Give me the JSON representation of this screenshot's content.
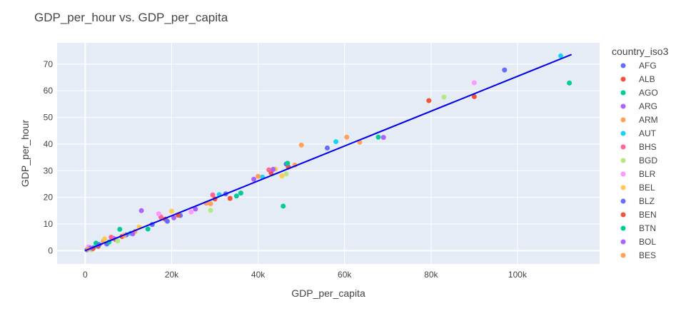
{
  "chart_data": {
    "type": "scatter",
    "title": "GDP_per_hour vs. GDP_per_capita",
    "xlabel": "GDP_per_capita",
    "ylabel": "GDP_per_hour",
    "xlim": [
      -6500,
      119000
    ],
    "ylim": [
      -5,
      78
    ],
    "x_ticks": [
      0,
      20000,
      40000,
      60000,
      80000,
      100000
    ],
    "x_tick_labels": [
      "0",
      "20k",
      "40k",
      "60k",
      "80k",
      "100k"
    ],
    "y_ticks": [
      0,
      10,
      20,
      30,
      40,
      50,
      60,
      70
    ],
    "y_tick_labels": [
      "0",
      "10",
      "20",
      "30",
      "40",
      "50",
      "60",
      "70"
    ],
    "grid": true,
    "legend_title": "country_iso3",
    "legend_placement": "right",
    "colors": {
      "plot_bg": "#E5ECF6",
      "grid": "#ffffff",
      "trendline": "#0000EE"
    },
    "series": [
      {
        "name": "AFG",
        "color": "#636EFA",
        "points": [
          [
            400,
            0.3
          ],
          [
            5000,
            2.5
          ],
          [
            15500,
            9.8
          ],
          [
            22000,
            13.2
          ],
          [
            56000,
            38.5
          ],
          [
            97000,
            67.8
          ]
        ]
      },
      {
        "name": "ALB",
        "color": "#EF553B",
        "points": [
          [
            3000,
            1.6
          ],
          [
            7000,
            4.2
          ],
          [
            18500,
            11.8
          ],
          [
            33500,
            19.6
          ],
          [
            43000,
            29.2
          ],
          [
            79500,
            56.3
          ],
          [
            90000,
            57.8
          ]
        ]
      },
      {
        "name": "AGO",
        "color": "#00CC96",
        "points": [
          [
            2500,
            2.8
          ],
          [
            8000,
            8.0
          ],
          [
            36000,
            21.6
          ],
          [
            45800,
            16.7
          ],
          [
            67800,
            42.6
          ],
          [
            112000,
            62.9
          ]
        ]
      },
      {
        "name": "ARG",
        "color": "#AB63FA",
        "points": [
          [
            6500,
            4.6
          ],
          [
            13000,
            15.0
          ],
          [
            20500,
            12.3
          ],
          [
            39000,
            26.8
          ],
          [
            69000,
            42.5
          ]
        ]
      },
      {
        "name": "ARM",
        "color": "#FFA15A",
        "points": [
          [
            4200,
            3.5
          ],
          [
            11500,
            7.2
          ],
          [
            29000,
            17.6
          ],
          [
            50000,
            39.6
          ],
          [
            60500,
            42.6
          ],
          [
            63500,
            40.7
          ]
        ]
      },
      {
        "name": "AUT",
        "color": "#19D3F3",
        "points": [
          [
            2000,
            1.2
          ],
          [
            10500,
            6.5
          ],
          [
            31000,
            21.0
          ],
          [
            41000,
            27.6
          ],
          [
            58000,
            40.9
          ],
          [
            110000,
            73.1
          ]
        ]
      },
      {
        "name": "BHS",
        "color": "#FF6692",
        "points": [
          [
            6000,
            5.0
          ],
          [
            17500,
            12.6
          ],
          [
            29500,
            20.9
          ],
          [
            42500,
            30.3
          ]
        ]
      },
      {
        "name": "BGD",
        "color": "#B6E880",
        "points": [
          [
            1500,
            0.3
          ],
          [
            7500,
            3.6
          ],
          [
            29000,
            15.1
          ],
          [
            46500,
            28.8
          ],
          [
            83000,
            57.6
          ]
        ]
      },
      {
        "name": "BLR",
        "color": "#FF97FF",
        "points": [
          [
            800,
            1.4
          ],
          [
            17000,
            13.8
          ],
          [
            24500,
            14.5
          ],
          [
            90000,
            63.0
          ]
        ]
      },
      {
        "name": "BEL",
        "color": "#FECB52",
        "points": [
          [
            4500,
            4.4
          ],
          [
            12500,
            8.9
          ],
          [
            20000,
            14.8
          ],
          [
            44000,
            30.6
          ],
          [
            45500,
            28.0
          ]
        ]
      },
      {
        "name": "BLZ",
        "color": "#636EFA",
        "points": [
          [
            3200,
            2.3
          ],
          [
            9500,
            5.9
          ],
          [
            19000,
            11.0
          ],
          [
            32500,
            21.3
          ],
          [
            46500,
            32.5
          ]
        ]
      },
      {
        "name": "BEN",
        "color": "#EF553B",
        "points": [
          [
            1800,
            0.8
          ],
          [
            8500,
            5.3
          ],
          [
            21500,
            13.3
          ],
          [
            30000,
            19.4
          ],
          [
            47000,
            31.4
          ]
        ]
      },
      {
        "name": "BTN",
        "color": "#00CC96",
        "points": [
          [
            5500,
            3.2
          ],
          [
            14500,
            8.1
          ],
          [
            35000,
            20.5
          ],
          [
            46800,
            32.8
          ]
        ]
      },
      {
        "name": "BOL",
        "color": "#AB63FA",
        "points": [
          [
            1200,
            1.0
          ],
          [
            11000,
            6.3
          ],
          [
            25500,
            15.6
          ],
          [
            43500,
            30.5
          ]
        ]
      },
      {
        "name": "BES",
        "color": "#FFA15A",
        "points": [
          [
            600,
            0.5
          ],
          [
            9000,
            5.7
          ],
          [
            28000,
            17.8
          ],
          [
            40000,
            27.9
          ],
          [
            48500,
            32.1
          ]
        ]
      }
    ],
    "trendline": {
      "x": [
        0,
        112500
      ],
      "y": [
        0,
        73.6
      ]
    }
  }
}
